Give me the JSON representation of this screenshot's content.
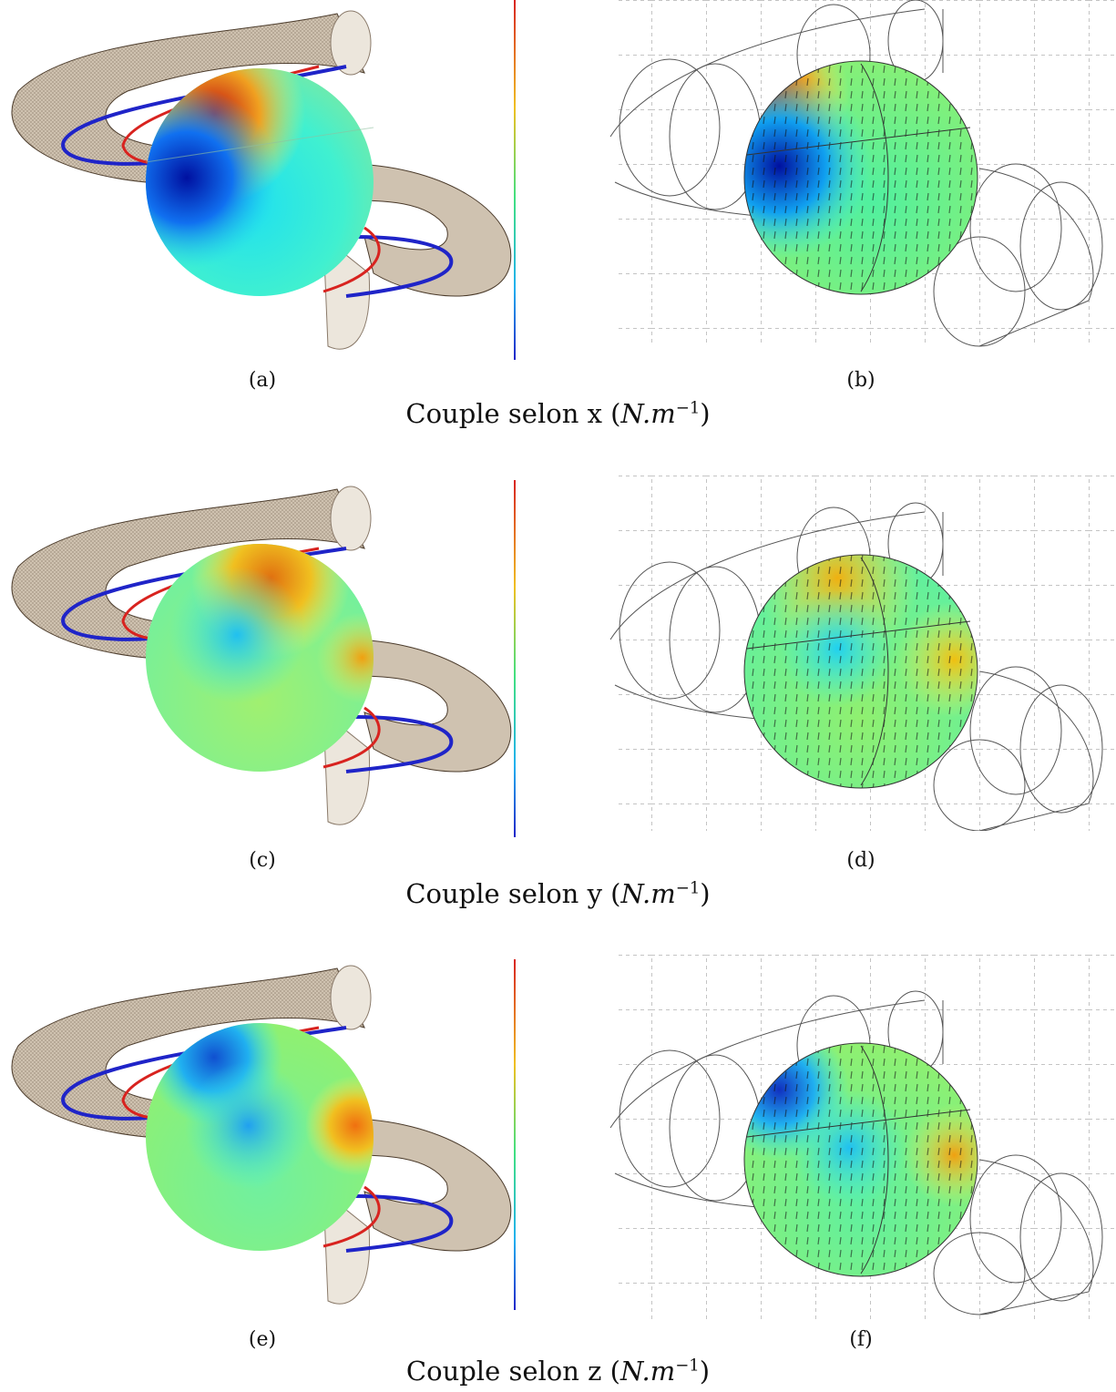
{
  "figure": {
    "rows": [
      {
        "left_label": "(a)",
        "right_label": "(b)",
        "caption_prefix": "Couple selon x (",
        "caption_unit": "N.m",
        "caption_exp": "−1",
        "caption_suffix": ")",
        "hot": "top",
        "cold": "bottom"
      },
      {
        "left_label": "(c)",
        "right_label": "(d)",
        "caption_prefix": "Couple selon y (",
        "caption_unit": "N.m",
        "caption_exp": "−1",
        "caption_suffix": ")",
        "hot": "top-soft",
        "cold": "middle"
      },
      {
        "left_label": "(e)",
        "right_label": "(f)",
        "caption_prefix": "Couple selon z (",
        "caption_unit": "N.m",
        "caption_exp": "−1",
        "caption_suffix": ")",
        "hot": "right",
        "cold": "top-left"
      }
    ],
    "colors": {
      "coil_blue": "#1f24c8",
      "coil_red": "#d8231f",
      "torus": "#c8b9a4",
      "colorbar_top": "#d8231f",
      "colorbar_bottom": "#1f24c8"
    }
  }
}
